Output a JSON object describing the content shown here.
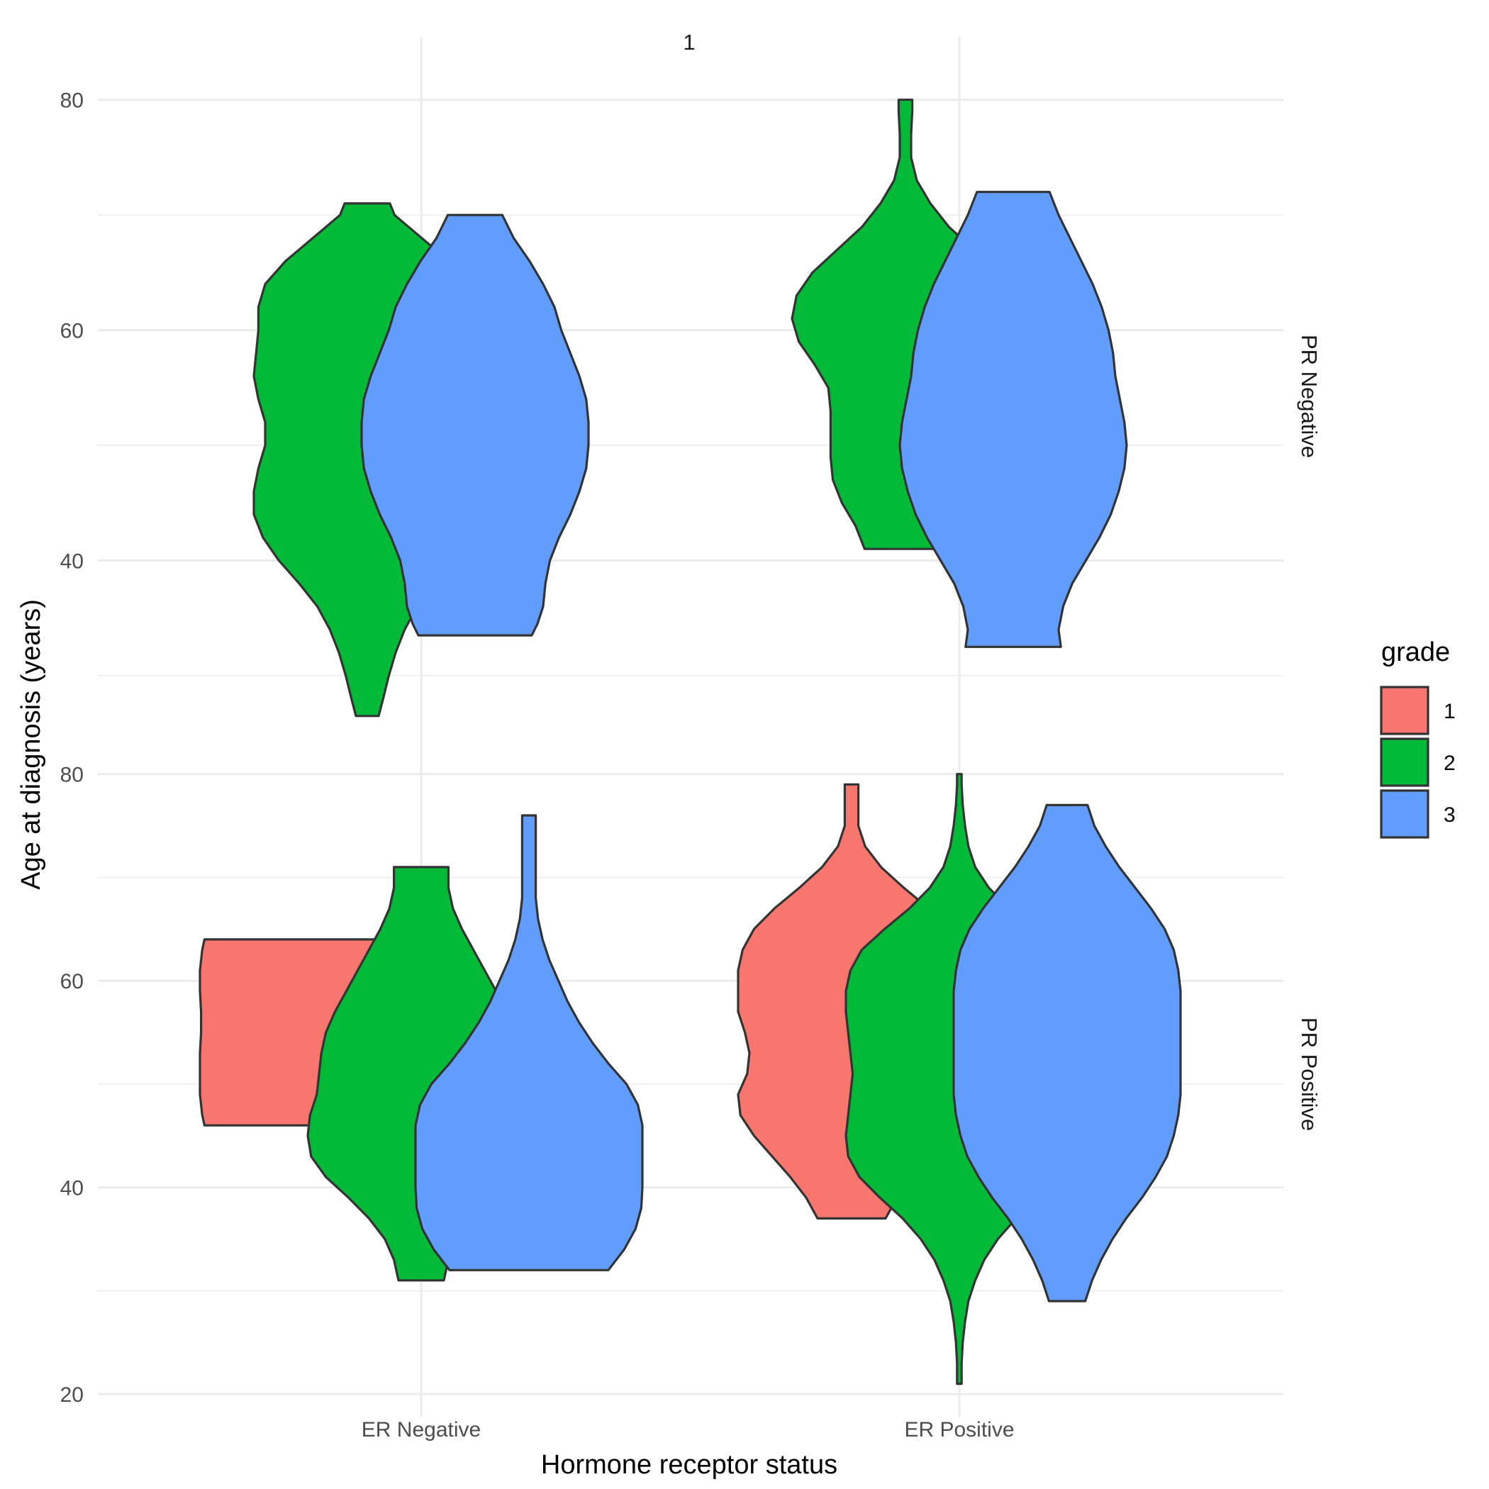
{
  "chart_data": {
    "type": "violin",
    "title": "",
    "top_strip": "1",
    "xlabel": "Hormone receptor status",
    "ylabel": "Age at diagnosis (years)",
    "categories": [
      "ER Negative",
      "ER Positive"
    ],
    "y_ticks": [
      20,
      40,
      60,
      80
    ],
    "legend": {
      "title": "grade",
      "position": "right",
      "entries": [
        {
          "label": "1",
          "color": "#F8766D"
        },
        {
          "label": "2",
          "color": "#00BA38"
        },
        {
          "label": "3",
          "color": "#619CFF"
        }
      ]
    },
    "grid": true,
    "panels": [
      {
        "strip": "PR Negative",
        "ylim": [
          25.5,
          83
        ],
        "y_ticks": [
          40,
          60,
          80
        ],
        "violins": [
          {
            "category": "ER Negative",
            "grade": "2",
            "min": 26.5,
            "max": 71,
            "profile": [
              [
                26.5,
                0.1
              ],
              [
                28,
                0.14
              ],
              [
                30,
                0.19
              ],
              [
                32,
                0.25
              ],
              [
                34,
                0.33
              ],
              [
                36,
                0.44
              ],
              [
                38,
                0.6
              ],
              [
                40,
                0.78
              ],
              [
                42,
                0.92
              ],
              [
                44,
                1.0
              ],
              [
                46,
                1.0
              ],
              [
                48,
                0.96
              ],
              [
                50,
                0.9
              ],
              [
                52,
                0.9
              ],
              [
                54,
                0.96
              ],
              [
                56,
                1.0
              ],
              [
                58,
                0.98
              ],
              [
                60,
                0.96
              ],
              [
                62,
                0.96
              ],
              [
                64,
                0.9
              ],
              [
                66,
                0.72
              ],
              [
                68,
                0.48
              ],
              [
                70,
                0.24
              ],
              [
                71,
                0.2
              ]
            ]
          },
          {
            "category": "ER Negative",
            "grade": "3",
            "min": 33.5,
            "max": 70,
            "profile": [
              [
                33.5,
                0.5
              ],
              [
                34.5,
                0.55
              ],
              [
                36,
                0.6
              ],
              [
                38,
                0.62
              ],
              [
                40,
                0.66
              ],
              [
                42,
                0.74
              ],
              [
                44,
                0.84
              ],
              [
                46,
                0.92
              ],
              [
                48,
                0.98
              ],
              [
                50,
                1.0
              ],
              [
                52,
                1.0
              ],
              [
                54,
                0.98
              ],
              [
                56,
                0.92
              ],
              [
                58,
                0.84
              ],
              [
                60,
                0.76
              ],
              [
                62,
                0.7
              ],
              [
                64,
                0.6
              ],
              [
                66,
                0.48
              ],
              [
                68,
                0.34
              ],
              [
                70,
                0.24
              ]
            ]
          },
          {
            "category": "ER Positive",
            "grade": "2",
            "min": 41,
            "max": 80,
            "profile": [
              [
                41,
                0.36
              ],
              [
                43,
                0.44
              ],
              [
                45,
                0.56
              ],
              [
                47,
                0.64
              ],
              [
                49,
                0.66
              ],
              [
                51,
                0.66
              ],
              [
                53,
                0.66
              ],
              [
                55,
                0.68
              ],
              [
                57,
                0.8
              ],
              [
                59,
                0.94
              ],
              [
                61,
                1.0
              ],
              [
                63,
                0.96
              ],
              [
                65,
                0.82
              ],
              [
                67,
                0.6
              ],
              [
                69,
                0.38
              ],
              [
                71,
                0.22
              ],
              [
                73,
                0.1
              ],
              [
                75,
                0.05
              ],
              [
                77,
                0.05
              ],
              [
                79,
                0.06
              ],
              [
                80,
                0.06
              ]
            ]
          },
          {
            "category": "ER Positive",
            "grade": "3",
            "min": 32.5,
            "max": 72,
            "profile": [
              [
                32.5,
                0.42
              ],
              [
                34,
                0.4
              ],
              [
                36,
                0.44
              ],
              [
                38,
                0.52
              ],
              [
                40,
                0.64
              ],
              [
                42,
                0.76
              ],
              [
                44,
                0.86
              ],
              [
                46,
                0.93
              ],
              [
                48,
                0.98
              ],
              [
                50,
                1.0
              ],
              [
                52,
                0.98
              ],
              [
                54,
                0.94
              ],
              [
                56,
                0.9
              ],
              [
                58,
                0.88
              ],
              [
                60,
                0.84
              ],
              [
                62,
                0.78
              ],
              [
                64,
                0.7
              ],
              [
                66,
                0.6
              ],
              [
                68,
                0.5
              ],
              [
                70,
                0.4
              ],
              [
                72,
                0.32
              ]
            ]
          }
        ]
      },
      {
        "strip": "PR Positive",
        "ylim": [
          18.5,
          83
        ],
        "y_ticks": [
          20,
          40,
          60,
          80
        ],
        "violins": [
          {
            "category": "ER Negative",
            "grade": "1",
            "min": 46,
            "max": 64,
            "profile": [
              [
                46,
                0.96
              ],
              [
                47,
                0.98
              ],
              [
                49,
                1.0
              ],
              [
                51,
                1.0
              ],
              [
                53,
                1.0
              ],
              [
                55,
                0.99
              ],
              [
                57,
                0.99
              ],
              [
                59,
                1.0
              ],
              [
                61,
                1.0
              ],
              [
                63,
                0.98
              ],
              [
                64,
                0.96
              ]
            ]
          },
          {
            "category": "ER Negative",
            "grade": "2",
            "min": 31,
            "max": 71,
            "profile": [
              [
                31,
                0.2
              ],
              [
                33,
                0.24
              ],
              [
                35,
                0.32
              ],
              [
                37,
                0.46
              ],
              [
                39,
                0.64
              ],
              [
                41,
                0.84
              ],
              [
                43,
                0.97
              ],
              [
                45,
                1.0
              ],
              [
                47,
                0.98
              ],
              [
                49,
                0.92
              ],
              [
                51,
                0.9
              ],
              [
                53,
                0.88
              ],
              [
                55,
                0.84
              ],
              [
                57,
                0.76
              ],
              [
                59,
                0.66
              ],
              [
                61,
                0.56
              ],
              [
                63,
                0.46
              ],
              [
                65,
                0.36
              ],
              [
                67,
                0.28
              ],
              [
                69,
                0.24
              ],
              [
                71,
                0.24
              ]
            ]
          },
          {
            "category": "ER Negative",
            "grade": "3",
            "min": 32,
            "max": 76,
            "profile": [
              [
                32,
                0.7
              ],
              [
                34,
                0.84
              ],
              [
                36,
                0.94
              ],
              [
                38,
                0.99
              ],
              [
                40,
                1.0
              ],
              [
                42,
                1.0
              ],
              [
                44,
                1.0
              ],
              [
                46,
                1.0
              ],
              [
                48,
                0.96
              ],
              [
                50,
                0.86
              ],
              [
                52,
                0.7
              ],
              [
                54,
                0.56
              ],
              [
                56,
                0.44
              ],
              [
                58,
                0.34
              ],
              [
                60,
                0.26
              ],
              [
                62,
                0.18
              ],
              [
                64,
                0.12
              ],
              [
                66,
                0.08
              ],
              [
                68,
                0.06
              ],
              [
                70,
                0.06
              ],
              [
                72,
                0.06
              ],
              [
                74,
                0.06
              ],
              [
                76,
                0.06
              ]
            ]
          },
          {
            "category": "ER Positive",
            "grade": "1",
            "min": 37,
            "max": 79,
            "profile": [
              [
                37,
                0.3
              ],
              [
                39,
                0.4
              ],
              [
                41,
                0.54
              ],
              [
                43,
                0.7
              ],
              [
                45,
                0.86
              ],
              [
                47,
                0.98
              ],
              [
                49,
                1.0
              ],
              [
                51,
                0.92
              ],
              [
                53,
                0.9
              ],
              [
                55,
                0.94
              ],
              [
                57,
                1.0
              ],
              [
                59,
                1.0
              ],
              [
                61,
                1.0
              ],
              [
                63,
                0.96
              ],
              [
                65,
                0.86
              ],
              [
                67,
                0.68
              ],
              [
                69,
                0.46
              ],
              [
                71,
                0.26
              ],
              [
                73,
                0.12
              ],
              [
                75,
                0.06
              ],
              [
                77,
                0.06
              ],
              [
                79,
                0.06
              ]
            ]
          },
          {
            "category": "ER Positive",
            "grade": "2",
            "min": 21,
            "max": 80,
            "profile": [
              [
                21,
                0.02
              ],
              [
                23,
                0.02
              ],
              [
                25,
                0.03
              ],
              [
                27,
                0.05
              ],
              [
                29,
                0.08
              ],
              [
                31,
                0.14
              ],
              [
                33,
                0.22
              ],
              [
                35,
                0.34
              ],
              [
                37,
                0.5
              ],
              [
                39,
                0.7
              ],
              [
                41,
                0.88
              ],
              [
                43,
                0.98
              ],
              [
                45,
                1.0
              ],
              [
                47,
                0.98
              ],
              [
                49,
                0.96
              ],
              [
                51,
                0.94
              ],
              [
                53,
                0.96
              ],
              [
                55,
                0.98
              ],
              [
                57,
                1.0
              ],
              [
                59,
                1.0
              ],
              [
                61,
                0.96
              ],
              [
                63,
                0.86
              ],
              [
                65,
                0.66
              ],
              [
                67,
                0.44
              ],
              [
                69,
                0.26
              ],
              [
                71,
                0.14
              ],
              [
                73,
                0.08
              ],
              [
                75,
                0.05
              ],
              [
                77,
                0.03
              ],
              [
                79,
                0.02
              ],
              [
                80,
                0.02
              ]
            ]
          },
          {
            "category": "ER Positive",
            "grade": "3",
            "min": 29,
            "max": 77,
            "profile": [
              [
                29,
                0.16
              ],
              [
                31,
                0.22
              ],
              [
                33,
                0.3
              ],
              [
                35,
                0.4
              ],
              [
                37,
                0.52
              ],
              [
                39,
                0.66
              ],
              [
                41,
                0.78
              ],
              [
                43,
                0.88
              ],
              [
                45,
                0.94
              ],
              [
                47,
                0.98
              ],
              [
                49,
                1.0
              ],
              [
                51,
                1.0
              ],
              [
                53,
                1.0
              ],
              [
                55,
                1.0
              ],
              [
                57,
                1.0
              ],
              [
                59,
                1.0
              ],
              [
                61,
                0.98
              ],
              [
                63,
                0.94
              ],
              [
                65,
                0.86
              ],
              [
                67,
                0.74
              ],
              [
                69,
                0.6
              ],
              [
                71,
                0.46
              ],
              [
                73,
                0.34
              ],
              [
                75,
                0.24
              ],
              [
                77,
                0.18
              ]
            ]
          }
        ]
      }
    ]
  }
}
